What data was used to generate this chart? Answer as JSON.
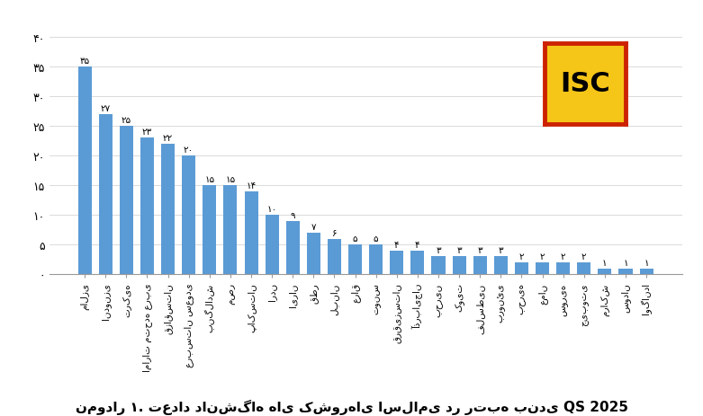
{
  "categories": [
    "مالزی",
    "اندونزی",
    "ترکیه",
    "امارات متحده عربی",
    "قزاقستان",
    "عربستان سعودی",
    "بنگلادش",
    "مصر",
    "پاکستان",
    "اردن",
    "ایران",
    "قطر",
    "لبنان",
    "عراق",
    "تونس",
    "قرقیزستان",
    "آذربایجان",
    "بحرین",
    "کویت",
    "فلسطین",
    "برونئی",
    "بحریه",
    "عمان",
    "سوریه",
    "جیبوتی",
    "مراکش",
    "سودان",
    "اوگاندا"
  ],
  "values": [
    35,
    27,
    25,
    23,
    22,
    20,
    15,
    15,
    14,
    10,
    9,
    7,
    6,
    5,
    5,
    4,
    4,
    3,
    3,
    3,
    3,
    2,
    2,
    2,
    2,
    1,
    1,
    1
  ],
  "bar_color": "#5B9BD5",
  "title": "نمودار ۱. تعداد دانشگاه های کشورهای اسلامی در رتبه بندی QS 2025",
  "ylim": [
    0,
    40
  ],
  "yticks": [
    0,
    5,
    10,
    15,
    20,
    25,
    30,
    35,
    40
  ],
  "ytick_labels": [
    "۰",
    "۵",
    "۱۰",
    "۱۵",
    "۲۰",
    "۲۵",
    "۳۰",
    "۳۵",
    "۴۰"
  ],
  "background_color": "#FFFFFF",
  "isc_bg": "#F5C518",
  "isc_border": "#CC2200",
  "isc_text": "ISC"
}
